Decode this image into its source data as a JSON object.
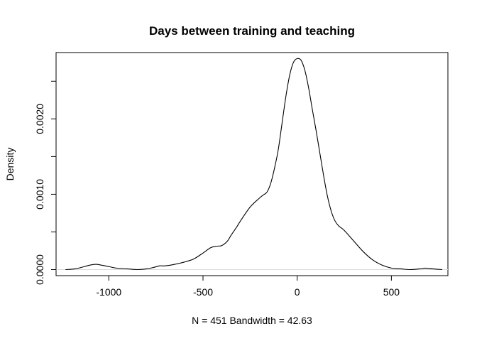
{
  "chart_data": {
    "type": "line",
    "title": "Days between training and teaching",
    "xlabel": "N = 451   Bandwidth = 42.63",
    "ylabel": "Density",
    "xlim": [
      -1280,
      800
    ],
    "ylim": [
      -8e-05,
      0.00288
    ],
    "x_ticks": [
      -1000,
      -500,
      0,
      500
    ],
    "x_tick_labels": [
      "-1000",
      "-500",
      "0",
      "500"
    ],
    "y_ticks": [
      0,
      0.0005,
      0.001,
      0.0015,
      0.002,
      0.0025
    ],
    "y_tick_labels": [
      "0.0000",
      "",
      "0.0010",
      "",
      "0.0020",
      ""
    ],
    "zero_line": true,
    "grid": false,
    "legend": "none",
    "series": [
      {
        "color": "#000000",
        "x": [
          -1230,
          -1180,
          -1130,
          -1100,
          -1070,
          -1040,
          -1000,
          -960,
          -900,
          -850,
          -800,
          -760,
          -730,
          -700,
          -650,
          -600,
          -550,
          -500,
          -460,
          -430,
          -400,
          -370,
          -350,
          -320,
          -300,
          -250,
          -200,
          -180,
          -160,
          -140,
          -120,
          -100,
          -80,
          -60,
          -40,
          -20,
          0,
          20,
          40,
          60,
          80,
          100,
          120,
          140,
          160,
          180,
          200,
          220,
          250,
          300,
          350,
          400,
          450,
          500,
          550,
          600,
          650,
          680,
          720,
          770
        ],
        "y": [
          0.0,
          1e-05,
          4e-05,
          6e-05,
          7e-05,
          6e-05,
          4e-05,
          2e-05,
          1e-05,
          0.0,
          1e-05,
          3e-05,
          5e-05,
          5e-05,
          7e-05,
          0.0001,
          0.00014,
          0.00022,
          0.00029,
          0.00031,
          0.00032,
          0.00038,
          0.00046,
          0.00057,
          0.00065,
          0.00083,
          0.00095,
          0.00099,
          0.00103,
          0.00115,
          0.00135,
          0.0016,
          0.00195,
          0.0023,
          0.00258,
          0.00275,
          0.0028,
          0.00278,
          0.00265,
          0.00242,
          0.00213,
          0.00185,
          0.00155,
          0.00125,
          0.00098,
          0.00078,
          0.00065,
          0.00058,
          0.00052,
          0.00038,
          0.00024,
          0.00013,
          6e-05,
          2e-05,
          1e-05,
          0.0,
          1e-05,
          2e-05,
          1e-05,
          0.0
        ]
      }
    ]
  }
}
